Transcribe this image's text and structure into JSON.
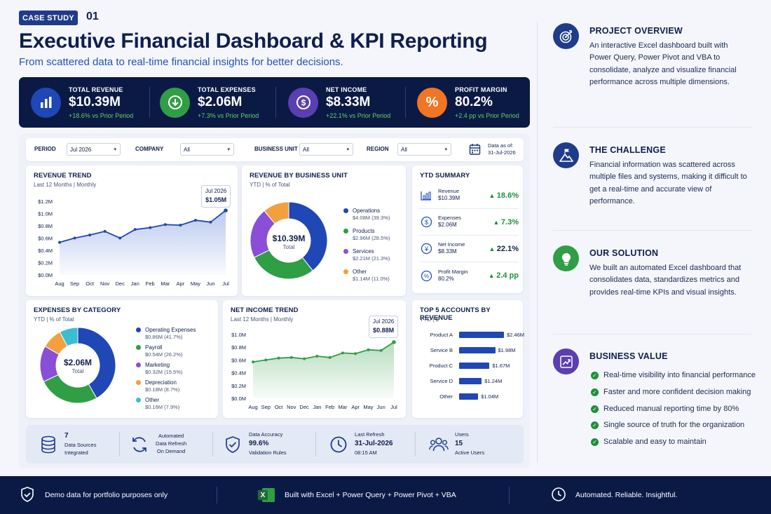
{
  "header": {
    "badge": "CASE STUDY",
    "number": "01",
    "title": "Executive Financial Dashboard & KPI Reporting",
    "subtitle": "From scattered data to real-time financial insights for better decisions."
  },
  "kpis": [
    {
      "label": "TOTAL REVENUE",
      "value": "$10.39M",
      "delta": "+18.6% vs Prior Period",
      "color": "#1f47b5",
      "icon": "bar-chart-icon"
    },
    {
      "label": "TOTAL EXPENSES",
      "value": "$2.06M",
      "delta": "+7.3% vs Prior Period",
      "color": "#2f9e44",
      "icon": "arrow-down-icon"
    },
    {
      "label": "NET INCOME",
      "value": "$8.33M",
      "delta": "+22.1% vs Prior Period",
      "color": "#5a3fb0",
      "icon": "dollar-icon"
    },
    {
      "label": "PROFIT MARGIN",
      "value": "80.2%",
      "delta": "+2.4 pp vs Prior Period",
      "color": "#f07524",
      "icon": "percent-icon"
    }
  ],
  "filters": {
    "period_label": "PERIOD",
    "period_value": "Jul 2026",
    "company_label": "COMPANY",
    "company_value": "All",
    "bu_label": "BUSINESS UNIT",
    "bu_value": "All",
    "region_label": "REGION",
    "region_value": "All",
    "data_as_of_label": "Data as of:",
    "data_as_of_value": "31-Jul-2026"
  },
  "revenue_trend": {
    "title": "REVENUE TREND",
    "subtitle": "Last 12 Months | Monthly",
    "tooltip_label": "Jul 2026",
    "tooltip_value": "$1.05M",
    "y_ticks": [
      "$1.2M",
      "$1.0M",
      "$0.8M",
      "$0.6M",
      "$0.4M",
      "$0.2M",
      "$0.0M"
    ]
  },
  "revenue_bu": {
    "title": "REVENUE BY BUSINESS UNIT",
    "subtitle": "YTD | % of Total",
    "center_value": "$10.39M",
    "center_label": "Total"
  },
  "ytd": {
    "title": "YTD SUMMARY",
    "rows": [
      {
        "label": "Revenue",
        "value": "$10.39M",
        "delta": "18.6%",
        "icon": "bar-chart-icon"
      },
      {
        "label": "Expenses",
        "value": "$2.06M",
        "delta": "7.3%",
        "icon": "dollar-icon"
      },
      {
        "label": "Net Income",
        "value": "$8.33M",
        "delta": "22.1%",
        "icon": "yen-icon"
      },
      {
        "label": "Profit Margin",
        "value": "80.2%",
        "delta": "2.4 pp",
        "icon": "percent-icon"
      }
    ]
  },
  "expenses_cat": {
    "title": "EXPENSES BY CATEGORY",
    "subtitle": "YTD | % of Total",
    "center_value": "$2.06M",
    "center_label": "Total"
  },
  "net_income_trend": {
    "title": "NET INCOME TREND",
    "subtitle": "Last 12 Months | Monthly",
    "tooltip_label": "Jul 2026",
    "tooltip_value": "$0.88M",
    "y_ticks": [
      "$1.0M",
      "$0.8M",
      "$0.6M",
      "$0.4M",
      "$0.2M",
      "$0.0M"
    ]
  },
  "top_accounts": {
    "title": "TOP 5 ACCOUNTS BY REVENUE",
    "subtitle": "YTD | $"
  },
  "chart_data": [
    {
      "type": "line",
      "title": "REVENUE TREND",
      "x": [
        "Aug",
        "Sep",
        "Oct",
        "Nov",
        "Dec",
        "Jan",
        "Feb",
        "Mar",
        "Apr",
        "May",
        "Jun",
        "Jul"
      ],
      "values": [
        0.53,
        0.6,
        0.65,
        0.71,
        0.6,
        0.74,
        0.77,
        0.82,
        0.81,
        0.89,
        0.86,
        1.05
      ],
      "ylim": [
        0,
        1.2
      ],
      "unit": "$M"
    },
    {
      "type": "pie",
      "title": "REVENUE BY BUSINESS UNIT",
      "labels": [
        "Operations",
        "Products",
        "Services",
        "Other"
      ],
      "amounts": [
        "$4.08M (39.3%)",
        "$2.96M (28.5%)",
        "$2.21M (21.3%)",
        "$1.14M (11.0%)"
      ],
      "values": [
        39.3,
        28.5,
        21.3,
        11.0
      ],
      "colors": [
        "#1f47b5",
        "#2f9e44",
        "#8a4fd6",
        "#f2a03d"
      ]
    },
    {
      "type": "pie",
      "title": "EXPENSES BY CATEGORY",
      "labels": [
        "Operating Expenses",
        "Payroll",
        "Marketing",
        "Depreciation",
        "Other"
      ],
      "amounts": [
        "$0.86M (41.7%)",
        "$0.54M (26.2%)",
        "$0.32M (15.5%)",
        "$0.18M (8.7%)",
        "$0.16M (7.9%)"
      ],
      "values": [
        41.7,
        26.2,
        15.5,
        8.7,
        7.9
      ],
      "colors": [
        "#1f47b5",
        "#2f9e44",
        "#8a4fd6",
        "#f2a03d",
        "#3bbdd4"
      ]
    },
    {
      "type": "area",
      "title": "NET INCOME TREND",
      "x": [
        "Aug",
        "Sep",
        "Oct",
        "Nov",
        "Dec",
        "Jan",
        "Feb",
        "Mar",
        "Apr",
        "May",
        "Jun",
        "Jul"
      ],
      "values": [
        0.57,
        0.6,
        0.63,
        0.64,
        0.62,
        0.66,
        0.64,
        0.71,
        0.7,
        0.76,
        0.75,
        0.88
      ],
      "ylim": [
        0,
        1.0
      ],
      "unit": "$M"
    },
    {
      "type": "bar",
      "title": "TOP 5 ACCOUNTS BY REVENUE",
      "categories": [
        "Product A",
        "Service B",
        "Product C",
        "Service D",
        "Other"
      ],
      "values": [
        2.46,
        1.98,
        1.67,
        1.24,
        1.04
      ],
      "labels": [
        "$2.46M",
        "$1.98M",
        "$1.67M",
        "$1.24M",
        "$1.04M"
      ],
      "unit": "$M"
    }
  ],
  "stats": [
    {
      "value": "7",
      "line1": "Data Sources",
      "line2": "Integrated",
      "icon": "database-icon"
    },
    {
      "value": "",
      "line1": "Automated",
      "line2": "Data Refresh",
      "line3": "On Demand",
      "icon": "refresh-icon"
    },
    {
      "value": "99.6%",
      "line1": "Data Accuracy",
      "line2": "Validation Rules",
      "icon": "shield-check-icon"
    },
    {
      "value": "31-Jul-2026",
      "line1": "Last Refresh",
      "line2": "08:15 AM",
      "icon": "clock-icon"
    },
    {
      "value": "15",
      "line1": "Users",
      "line2": "Active Users",
      "icon": "users-icon"
    }
  ],
  "sidebar": {
    "overview_title": "PROJECT OVERVIEW",
    "overview_text": "An interactive Excel dashboard built with Power Query, Power Pivot and VBA to consolidate, analyze and visualize financial performance across multiple dimensions.",
    "challenge_title": "THE CHALLENGE",
    "challenge_text": "Financial information was scattered across multiple files and systems, making it difficult to get a real-time and accurate view of performance.",
    "solution_title": "OUR SOLUTION",
    "solution_text": "We built an automated Excel dashboard that consolidates data, standardizes metrics and provides real-time KPIs and visual insights.",
    "value_title": "BUSINESS VALUE",
    "value_items": [
      "Real-time visibility into financial performance",
      "Faster and more confident decision making",
      "Reduced manual reporting time by 80%",
      "Single source of truth for the organization",
      "Scalable and easy to maintain"
    ]
  },
  "footer": {
    "demo": "Demo data for portfolio purposes only",
    "built": "Built with Excel + Power Query + Power Pivot + VBA",
    "tagline": "Automated. Reliable. Insightful."
  },
  "colors": {
    "navy": "#0b1a45",
    "blue": "#1f47b5",
    "green": "#2f9e44",
    "purple": "#5a3fb0",
    "orange": "#f07524"
  }
}
